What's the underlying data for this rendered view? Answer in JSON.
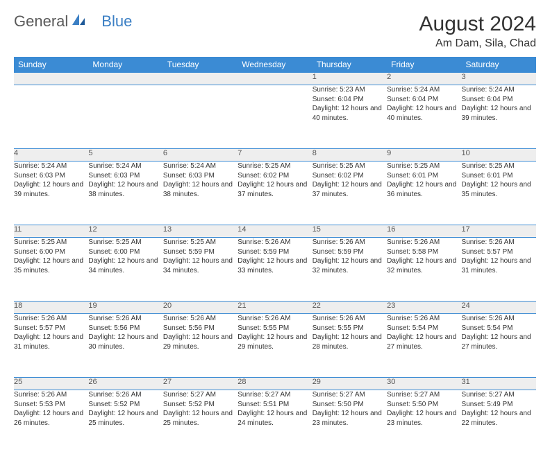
{
  "logo": {
    "part1": "General",
    "part2": "Blue"
  },
  "title": "August 2024",
  "location": "Am Dam, Sila, Chad",
  "colors": {
    "header_bg": "#3b8bd4",
    "header_text": "#ffffff",
    "daynum_bg": "#eeeeee",
    "border": "#3b8bd4",
    "text": "#333333",
    "logo_gray": "#5a5a5a",
    "logo_blue": "#3b7fc4"
  },
  "days_of_week": [
    "Sunday",
    "Monday",
    "Tuesday",
    "Wednesday",
    "Thursday",
    "Friday",
    "Saturday"
  ],
  "weeks": [
    [
      {
        "num": "",
        "lines": []
      },
      {
        "num": "",
        "lines": []
      },
      {
        "num": "",
        "lines": []
      },
      {
        "num": "",
        "lines": []
      },
      {
        "num": "1",
        "lines": [
          "Sunrise: 5:23 AM",
          "Sunset: 6:04 PM",
          "Daylight: 12 hours and 40 minutes."
        ]
      },
      {
        "num": "2",
        "lines": [
          "Sunrise: 5:24 AM",
          "Sunset: 6:04 PM",
          "Daylight: 12 hours and 40 minutes."
        ]
      },
      {
        "num": "3",
        "lines": [
          "Sunrise: 5:24 AM",
          "Sunset: 6:04 PM",
          "Daylight: 12 hours and 39 minutes."
        ]
      }
    ],
    [
      {
        "num": "4",
        "lines": [
          "Sunrise: 5:24 AM",
          "Sunset: 6:03 PM",
          "Daylight: 12 hours and 39 minutes."
        ]
      },
      {
        "num": "5",
        "lines": [
          "Sunrise: 5:24 AM",
          "Sunset: 6:03 PM",
          "Daylight: 12 hours and 38 minutes."
        ]
      },
      {
        "num": "6",
        "lines": [
          "Sunrise: 5:24 AM",
          "Sunset: 6:03 PM",
          "Daylight: 12 hours and 38 minutes."
        ]
      },
      {
        "num": "7",
        "lines": [
          "Sunrise: 5:25 AM",
          "Sunset: 6:02 PM",
          "Daylight: 12 hours and 37 minutes."
        ]
      },
      {
        "num": "8",
        "lines": [
          "Sunrise: 5:25 AM",
          "Sunset: 6:02 PM",
          "Daylight: 12 hours and 37 minutes."
        ]
      },
      {
        "num": "9",
        "lines": [
          "Sunrise: 5:25 AM",
          "Sunset: 6:01 PM",
          "Daylight: 12 hours and 36 minutes."
        ]
      },
      {
        "num": "10",
        "lines": [
          "Sunrise: 5:25 AM",
          "Sunset: 6:01 PM",
          "Daylight: 12 hours and 35 minutes."
        ]
      }
    ],
    [
      {
        "num": "11",
        "lines": [
          "Sunrise: 5:25 AM",
          "Sunset: 6:00 PM",
          "Daylight: 12 hours and 35 minutes."
        ]
      },
      {
        "num": "12",
        "lines": [
          "Sunrise: 5:25 AM",
          "Sunset: 6:00 PM",
          "Daylight: 12 hours and 34 minutes."
        ]
      },
      {
        "num": "13",
        "lines": [
          "Sunrise: 5:25 AM",
          "Sunset: 5:59 PM",
          "Daylight: 12 hours and 34 minutes."
        ]
      },
      {
        "num": "14",
        "lines": [
          "Sunrise: 5:26 AM",
          "Sunset: 5:59 PM",
          "Daylight: 12 hours and 33 minutes."
        ]
      },
      {
        "num": "15",
        "lines": [
          "Sunrise: 5:26 AM",
          "Sunset: 5:59 PM",
          "Daylight: 12 hours and 32 minutes."
        ]
      },
      {
        "num": "16",
        "lines": [
          "Sunrise: 5:26 AM",
          "Sunset: 5:58 PM",
          "Daylight: 12 hours and 32 minutes."
        ]
      },
      {
        "num": "17",
        "lines": [
          "Sunrise: 5:26 AM",
          "Sunset: 5:57 PM",
          "Daylight: 12 hours and 31 minutes."
        ]
      }
    ],
    [
      {
        "num": "18",
        "lines": [
          "Sunrise: 5:26 AM",
          "Sunset: 5:57 PM",
          "Daylight: 12 hours and 31 minutes."
        ]
      },
      {
        "num": "19",
        "lines": [
          "Sunrise: 5:26 AM",
          "Sunset: 5:56 PM",
          "Daylight: 12 hours and 30 minutes."
        ]
      },
      {
        "num": "20",
        "lines": [
          "Sunrise: 5:26 AM",
          "Sunset: 5:56 PM",
          "Daylight: 12 hours and 29 minutes."
        ]
      },
      {
        "num": "21",
        "lines": [
          "Sunrise: 5:26 AM",
          "Sunset: 5:55 PM",
          "Daylight: 12 hours and 29 minutes."
        ]
      },
      {
        "num": "22",
        "lines": [
          "Sunrise: 5:26 AM",
          "Sunset: 5:55 PM",
          "Daylight: 12 hours and 28 minutes."
        ]
      },
      {
        "num": "23",
        "lines": [
          "Sunrise: 5:26 AM",
          "Sunset: 5:54 PM",
          "Daylight: 12 hours and 27 minutes."
        ]
      },
      {
        "num": "24",
        "lines": [
          "Sunrise: 5:26 AM",
          "Sunset: 5:54 PM",
          "Daylight: 12 hours and 27 minutes."
        ]
      }
    ],
    [
      {
        "num": "25",
        "lines": [
          "Sunrise: 5:26 AM",
          "Sunset: 5:53 PM",
          "Daylight: 12 hours and 26 minutes."
        ]
      },
      {
        "num": "26",
        "lines": [
          "Sunrise: 5:26 AM",
          "Sunset: 5:52 PM",
          "Daylight: 12 hours and 25 minutes."
        ]
      },
      {
        "num": "27",
        "lines": [
          "Sunrise: 5:27 AM",
          "Sunset: 5:52 PM",
          "Daylight: 12 hours and 25 minutes."
        ]
      },
      {
        "num": "28",
        "lines": [
          "Sunrise: 5:27 AM",
          "Sunset: 5:51 PM",
          "Daylight: 12 hours and 24 minutes."
        ]
      },
      {
        "num": "29",
        "lines": [
          "Sunrise: 5:27 AM",
          "Sunset: 5:50 PM",
          "Daylight: 12 hours and 23 minutes."
        ]
      },
      {
        "num": "30",
        "lines": [
          "Sunrise: 5:27 AM",
          "Sunset: 5:50 PM",
          "Daylight: 12 hours and 23 minutes."
        ]
      },
      {
        "num": "31",
        "lines": [
          "Sunrise: 5:27 AM",
          "Sunset: 5:49 PM",
          "Daylight: 12 hours and 22 minutes."
        ]
      }
    ]
  ]
}
